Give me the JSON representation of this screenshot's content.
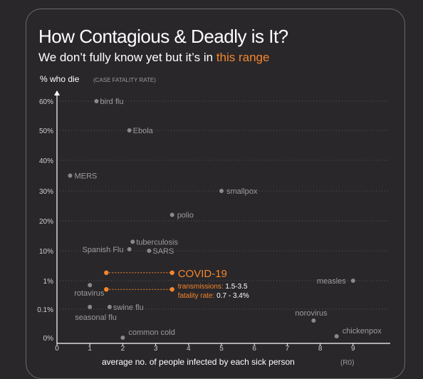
{
  "title": "How Contagious & Deadly is It?",
  "subtitle": {
    "text": "We don’t fully know yet but it’s in",
    "highlight": "this range"
  },
  "colors": {
    "background": "#29272a",
    "point": "#8a888b",
    "label": "#9d9b9e",
    "accent": "#f5862d",
    "grid": "#59575a"
  },
  "chart_data": {
    "type": "scatter",
    "title": "How Contagious & Deadly is It?",
    "ylabel": "% who die",
    "ylabel_sub": "(CASE FATALITY RATE)",
    "xlabel": "average no. of people infected by each sick person",
    "xlabel_sub": "(R0)",
    "xlim": [
      0,
      10
    ],
    "x_ticks": [
      "0",
      "1",
      "2",
      "3",
      "4",
      "5",
      "6",
      "7",
      "8",
      "9"
    ],
    "y_scale": "piecewise",
    "y_ticks": [
      "0%",
      "0.1%",
      "1%",
      "10%",
      "20%",
      "30%",
      "40%",
      "50%",
      "60%"
    ],
    "y_tick_values": [
      0,
      0.1,
      1,
      10,
      20,
      30,
      40,
      50,
      60
    ],
    "grid": "horizontal dotted",
    "points": [
      {
        "name": "bird flu",
        "x": 1.2,
        "y": 60
      },
      {
        "name": "Ebola",
        "x": 2.2,
        "y": 50
      },
      {
        "name": "MERS",
        "x": 0.4,
        "y": 35
      },
      {
        "name": "smallpox",
        "x": 5.0,
        "y": 30
      },
      {
        "name": "polio",
        "x": 3.5,
        "y": 22
      },
      {
        "name": "tuberculosis",
        "x": 2.3,
        "y": 13
      },
      {
        "name": "Spanish Flu",
        "x": 2.2,
        "y": 10.5
      },
      {
        "name": "SARS",
        "x": 2.8,
        "y": 10
      },
      {
        "name": "measles",
        "x": 9.0,
        "y": 1
      },
      {
        "name": "rotavirus",
        "x": 1.0,
        "y": 0.7
      },
      {
        "name": "swine flu",
        "x": 1.6,
        "y": 0.12
      },
      {
        "name": "seasonal flu",
        "x": 1.0,
        "y": 0.12
      },
      {
        "name": "norovirus",
        "x": 7.8,
        "y": 0.06
      },
      {
        "name": "chickenpox",
        "x": 8.5,
        "y": 0.005
      },
      {
        "name": "common cold",
        "x": 2.0,
        "y": 0
      }
    ],
    "highlight": {
      "name": "COVID-19",
      "transmissions_label": "transmissions:",
      "transmissions_value": "1.5-3.5",
      "fatality_label": "fatality rate:",
      "fatality_value": "0.7 - 3.4%",
      "x_range": [
        1.5,
        3.5
      ],
      "y_range": [
        0.7,
        3.4
      ]
    }
  }
}
